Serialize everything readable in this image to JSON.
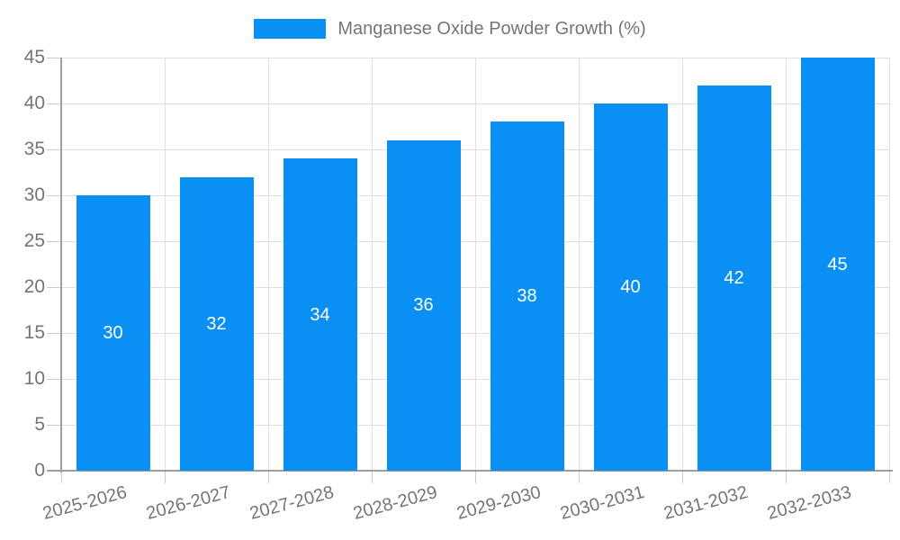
{
  "legend": {
    "label": "Manganese Oxide Powder Growth (%)"
  },
  "chart_data": {
    "type": "bar",
    "title": "Manganese Oxide Powder Growth (%)",
    "categories": [
      "2025-2026",
      "2026-2027",
      "2027-2028",
      "2028-2029",
      "2029-2030",
      "2030-2031",
      "2031-2032",
      "2032-2033"
    ],
    "values": [
      30,
      32,
      34,
      36,
      38,
      40,
      42,
      45
    ],
    "value_labels": [
      "30",
      "32",
      "34",
      "36",
      "38",
      "40",
      "42",
      "45"
    ],
    "xlabel": "",
    "ylabel": "",
    "ylim": [
      0,
      45
    ],
    "ytick_step": 5,
    "yticks": [
      0,
      5,
      10,
      15,
      20,
      25,
      30,
      35,
      40,
      45
    ],
    "grid": true,
    "legend_position": "top-center",
    "x_label_rotation_deg": -15,
    "colors": {
      "bar": "#0a90f5",
      "value_label": "#ffffff",
      "axis_label": "#757575",
      "gridline": "#e0e0e0",
      "axis_line": "#9e9e9e",
      "tick": "#cccccc",
      "background": "#ffffff"
    }
  }
}
